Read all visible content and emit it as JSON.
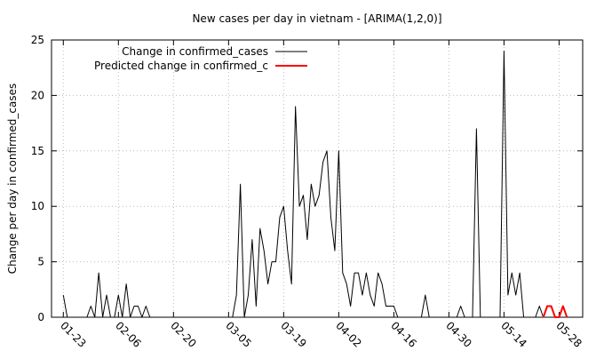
{
  "chart_data": {
    "type": "line",
    "title": "New cases per day in vietnam -  [ARIMA(1,2,0)]",
    "y_label": "Change per day in confirmed_cases",
    "x": [
      "01-23",
      "01-24",
      "01-25",
      "01-26",
      "01-27",
      "01-28",
      "01-29",
      "01-30",
      "01-31",
      "02-01",
      "02-02",
      "02-03",
      "02-04",
      "02-05",
      "02-06",
      "02-07",
      "02-08",
      "02-09",
      "02-10",
      "02-11",
      "02-12",
      "02-13",
      "02-14",
      "02-15",
      "02-16",
      "02-17",
      "02-18",
      "02-19",
      "02-20",
      "02-21",
      "02-22",
      "02-23",
      "02-24",
      "02-25",
      "02-26",
      "02-27",
      "02-28",
      "02-29",
      "03-01",
      "03-02",
      "03-03",
      "03-04",
      "03-05",
      "03-06",
      "03-07",
      "03-08",
      "03-09",
      "03-10",
      "03-11",
      "03-12",
      "03-13",
      "03-14",
      "03-15",
      "03-16",
      "03-17",
      "03-18",
      "03-19",
      "03-20",
      "03-21",
      "03-22",
      "03-23",
      "03-24",
      "03-25",
      "03-26",
      "03-27",
      "03-28",
      "03-29",
      "03-30",
      "03-31",
      "04-01",
      "04-02",
      "04-03",
      "04-04",
      "04-05",
      "04-06",
      "04-07",
      "04-08",
      "04-09",
      "04-10",
      "04-11",
      "04-12",
      "04-13",
      "04-14",
      "04-15",
      "04-16",
      "04-17",
      "04-18",
      "04-19",
      "04-20",
      "04-21",
      "04-22",
      "04-23",
      "04-24",
      "04-25",
      "04-26",
      "04-27",
      "04-28",
      "04-29",
      "04-30",
      "05-01",
      "05-02",
      "05-03",
      "05-04",
      "05-05",
      "05-06",
      "05-07",
      "05-08",
      "05-09",
      "05-10",
      "05-11",
      "05-12",
      "05-13",
      "05-14",
      "05-15",
      "05-16",
      "05-17",
      "05-18",
      "05-19",
      "05-20",
      "05-21",
      "05-22",
      "05-23",
      "05-24",
      "05-25",
      "05-26",
      "05-27",
      "05-28",
      "05-29",
      "05-30"
    ],
    "series": [
      {
        "name": "Change in confirmed_cases",
        "color": "#000000",
        "values": [
          2,
          0,
          0,
          0,
          0,
          0,
          0,
          1,
          0,
          4,
          0,
          2,
          0,
          0,
          2,
          0,
          3,
          0,
          1,
          1,
          0,
          1,
          0,
          0,
          0,
          0,
          0,
          0,
          0,
          0,
          0,
          0,
          0,
          0,
          0,
          0,
          0,
          0,
          0,
          0,
          0,
          0,
          0,
          0,
          2,
          12,
          0,
          2,
          7,
          1,
          8,
          6,
          3,
          5,
          5,
          9,
          10,
          6,
          3,
          19,
          10,
          11,
          7,
          12,
          10,
          11,
          14,
          15,
          9,
          6,
          15,
          4,
          3,
          1,
          4,
          4,
          2,
          4,
          2,
          1,
          4,
          3,
          1,
          1,
          1,
          0,
          0,
          0,
          0,
          0,
          0,
          0,
          2,
          0,
          0,
          0,
          0,
          0,
          0,
          0,
          0,
          1,
          0,
          0,
          0,
          17,
          0,
          0,
          0,
          0,
          0,
          0,
          24,
          2,
          4,
          2,
          4,
          0,
          0,
          0,
          0,
          1,
          0,
          null,
          null,
          null,
          null,
          null,
          null
        ]
      },
      {
        "name": "Predicted change in confirmed_c",
        "color": "#ff0000",
        "values": [
          null,
          null,
          null,
          null,
          null,
          null,
          null,
          null,
          null,
          null,
          null,
          null,
          null,
          null,
          null,
          null,
          null,
          null,
          null,
          null,
          null,
          null,
          null,
          null,
          null,
          null,
          null,
          null,
          null,
          null,
          null,
          null,
          null,
          null,
          null,
          null,
          null,
          null,
          null,
          null,
          null,
          null,
          null,
          null,
          null,
          null,
          null,
          null,
          null,
          null,
          null,
          null,
          null,
          null,
          null,
          null,
          null,
          null,
          null,
          null,
          null,
          null,
          null,
          null,
          null,
          null,
          null,
          null,
          null,
          null,
          null,
          null,
          null,
          null,
          null,
          null,
          null,
          null,
          null,
          null,
          null,
          null,
          null,
          null,
          null,
          null,
          null,
          null,
          null,
          null,
          null,
          null,
          null,
          null,
          null,
          null,
          null,
          null,
          null,
          null,
          null,
          null,
          null,
          null,
          null,
          null,
          null,
          null,
          null,
          null,
          null,
          null,
          null,
          null,
          null,
          null,
          null,
          null,
          null,
          null,
          null,
          null,
          0,
          1,
          1,
          0,
          0,
          1,
          0
        ]
      }
    ],
    "xlim": [
      "01-20",
      "06-03"
    ],
    "xticks": [
      "01-23",
      "02-06",
      "02-20",
      "03-05",
      "03-19",
      "04-02",
      "04-16",
      "04-30",
      "05-14",
      "05-28"
    ],
    "ylim": [
      0,
      25
    ],
    "yticks": [
      0,
      5,
      10,
      15,
      20,
      25
    ],
    "grid": true,
    "legend": "top-left"
  }
}
